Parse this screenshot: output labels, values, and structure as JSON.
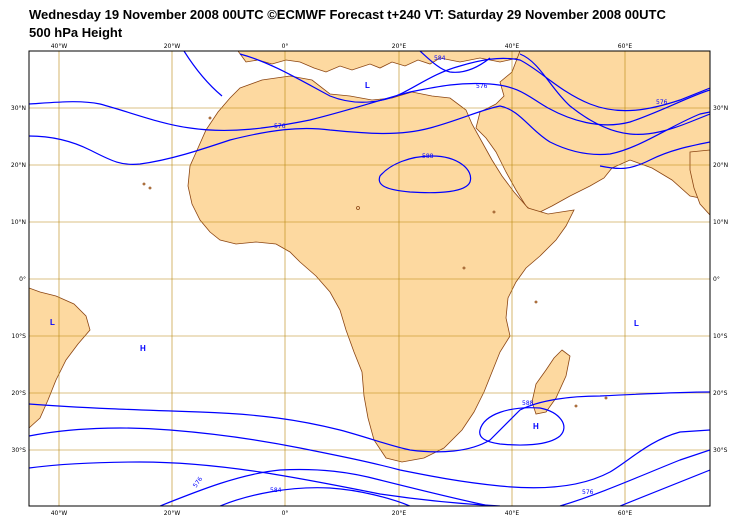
{
  "header": {
    "title": "Wednesday 19 November 2008 00UTC ©ECMWF Forecast t+240 VT: Saturday 29 November 2008 00UTC",
    "subtitle": "500 hPa Height"
  },
  "map": {
    "region": "Africa and surrounding oceans",
    "longitude_range": [
      -45,
      75
    ],
    "latitude_range": [
      -40,
      40
    ],
    "lon_tick_labels": [
      "40°W",
      "20°W",
      "0°",
      "20°E",
      "40°E",
      "60°E"
    ],
    "lat_tick_labels": [
      "30°N",
      "20°N",
      "10°N",
      "0°",
      "10°S",
      "20°S",
      "30°S"
    ],
    "contour_labels": [
      "584",
      "576",
      "576",
      "576",
      "588",
      "588",
      "576",
      "584",
      "576"
    ],
    "pressure_centers": [
      "L",
      "H",
      "L",
      "H"
    ],
    "colors": {
      "land": "#fdd9a0",
      "coastline": "#8b4513",
      "grid": "#b8860b",
      "contour": "#0000ff"
    }
  }
}
